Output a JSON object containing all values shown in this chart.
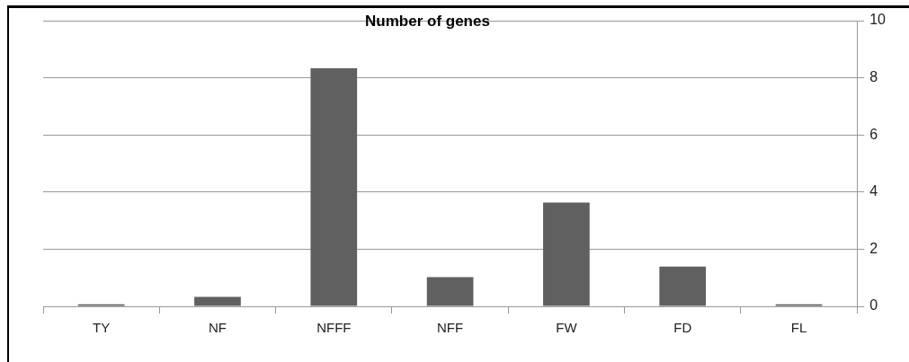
{
  "chart_data": {
    "type": "bar",
    "title": "Number of genes",
    "categories": [
      "TY",
      "NF",
      "NFFF",
      "NFF",
      "FW",
      "FD",
      "FL"
    ],
    "values": [
      0.07,
      0.33,
      8.33,
      1.02,
      3.63,
      1.39,
      0.07
    ],
    "color": "#606060",
    "ylim": [
      0,
      10
    ],
    "yticks": [
      0,
      2,
      4,
      6,
      8,
      10
    ],
    "grid": "y",
    "legend": false
  }
}
